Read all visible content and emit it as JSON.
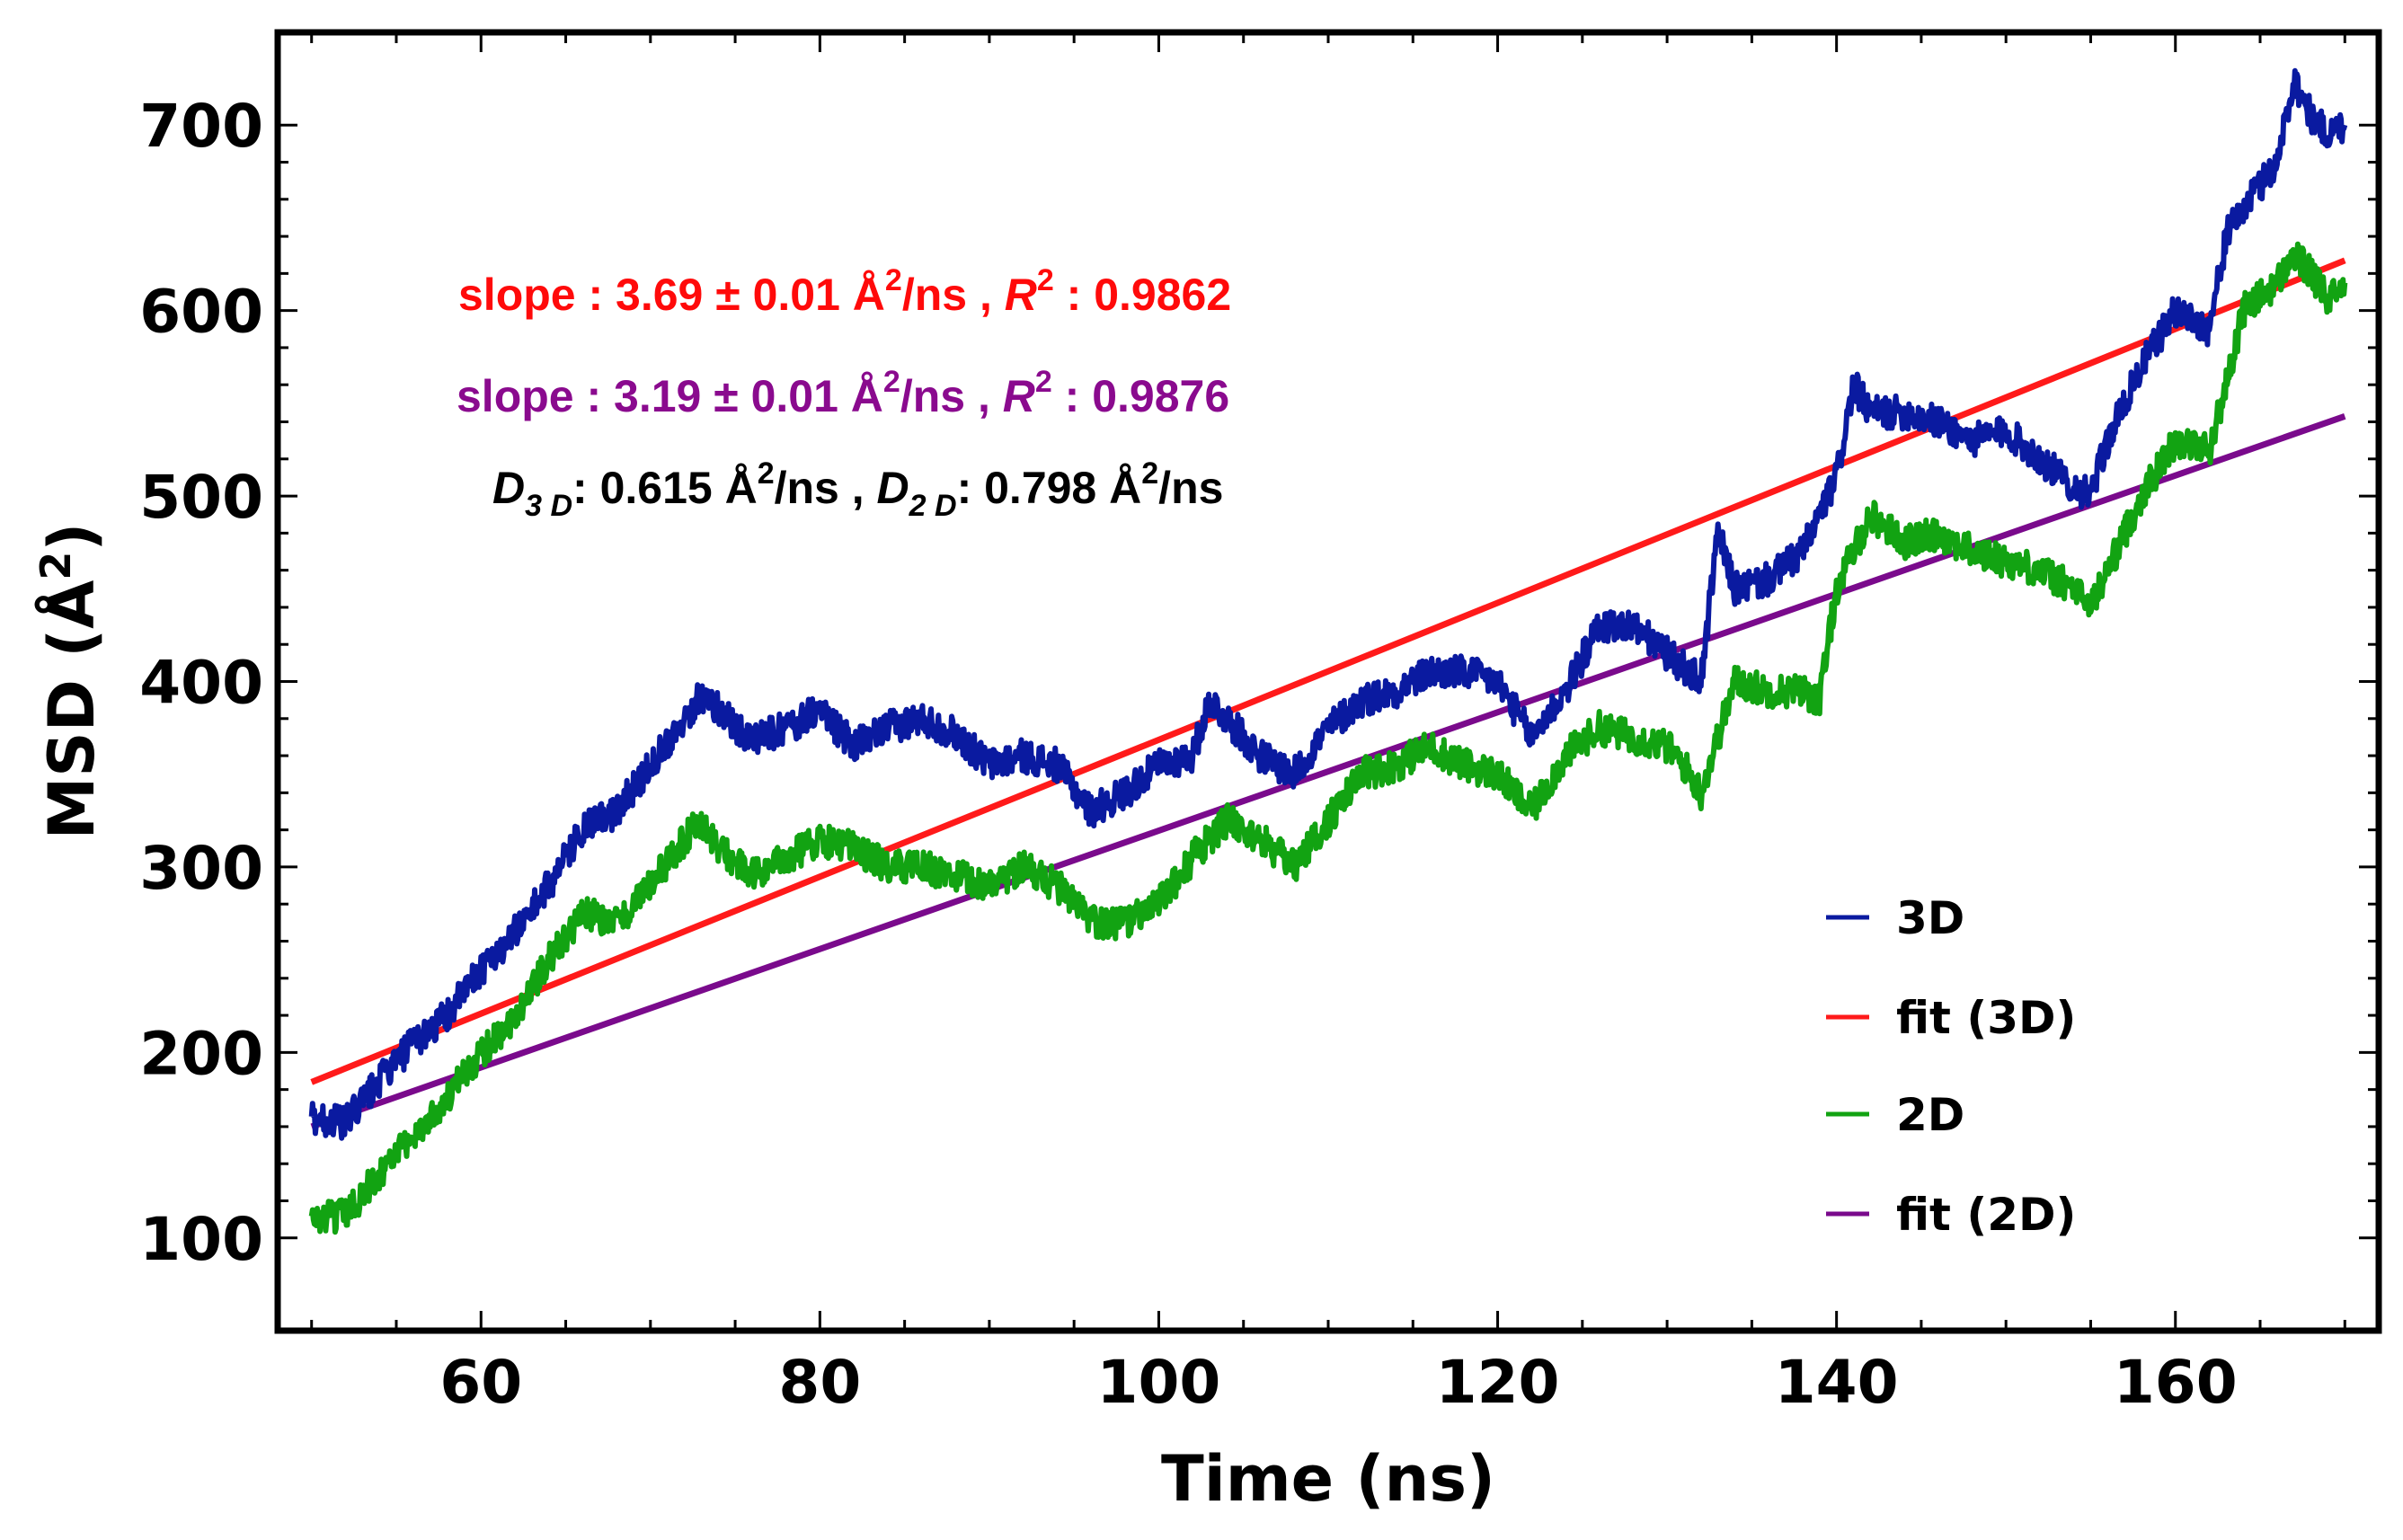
{
  "chart_data": {
    "type": "line",
    "xlabel": "Time (ns)",
    "ylabel_main": "MSD (Å",
    "ylabel_sup": "2",
    "ylabel_close": ")",
    "xlim": [
      48,
      172
    ],
    "ylim": [
      50,
      750
    ],
    "xticks": [
      60,
      80,
      100,
      120,
      140,
      160
    ],
    "yticks": [
      100,
      200,
      300,
      400,
      500,
      600,
      700
    ],
    "series": [
      {
        "name": "3D",
        "color": "#0a1aa0",
        "x": [
          50,
          52,
          54,
          56,
          58,
          60,
          62,
          64,
          66,
          68,
          70,
          72,
          73,
          74,
          76,
          78,
          80,
          82,
          84,
          86,
          88,
          90,
          92,
          94,
          96,
          98,
          100,
          102,
          103,
          104,
          106,
          108,
          110,
          112,
          114,
          116,
          118,
          120,
          122,
          124,
          126,
          128,
          130,
          132,
          133,
          134,
          136,
          138,
          140,
          141,
          142,
          144,
          146,
          148,
          150,
          152,
          154,
          155,
          156,
          158,
          160,
          162,
          163,
          164,
          166,
          167,
          168,
          169,
          170
        ],
        "values": [
          165,
          162,
          185,
          205,
          220,
          245,
          265,
          290,
          320,
          330,
          355,
          380,
          392,
          385,
          368,
          375,
          385,
          365,
          375,
          380,
          372,
          355,
          360,
          355,
          330,
          340,
          355,
          360,
          390,
          380,
          360,
          350,
          375,
          390,
          395,
          405,
          405,
          400,
          370,
          395,
          430,
          430,
          415,
          400,
          480,
          450,
          455,
          470,
          510,
          560,
          545,
          545,
          540,
          530,
          535,
          520,
          505,
          500,
          530,
          570,
          600,
          590,
          640,
          655,
          680,
          725,
          705,
          695,
          700
        ]
      },
      {
        "name": "2D",
        "color": "#12a312",
        "x": [
          50,
          52,
          54,
          56,
          58,
          60,
          62,
          64,
          66,
          68,
          70,
          72,
          73,
          74,
          76,
          78,
          80,
          82,
          84,
          86,
          88,
          90,
          92,
          94,
          96,
          98,
          100,
          102,
          104,
          106,
          108,
          110,
          112,
          114,
          116,
          118,
          120,
          122,
          124,
          126,
          128,
          130,
          131,
          132,
          134,
          136,
          138,
          139,
          140,
          142,
          144,
          146,
          148,
          150,
          152,
          154,
          155,
          156,
          158,
          160,
          162,
          163,
          164,
          166,
          167,
          168,
          169,
          170
        ],
        "values": [
          110,
          112,
          135,
          155,
          175,
          200,
          220,
          250,
          275,
          270,
          290,
          315,
          325,
          310,
          295,
          305,
          315,
          310,
          300,
          300,
          295,
          290,
          300,
          290,
          270,
          270,
          280,
          305,
          325,
          315,
          300,
          325,
          350,
          355,
          365,
          355,
          350,
          330,
          360,
          375,
          370,
          365,
          355,
          340,
          400,
          395,
          395,
          390,
          450,
          490,
          475,
          480,
          470,
          465,
          460,
          450,
          440,
          460,
          500,
          530,
          525,
          560,
          600,
          615,
          630,
          620,
          605,
          615
        ]
      },
      {
        "name": "fit (3D)",
        "color": "#ff1a1a",
        "x": [
          50,
          170
        ],
        "values": [
          184,
          627
        ]
      },
      {
        "name": "fit (2D)",
        "color": "#7a0a8c",
        "x": [
          50,
          170
        ],
        "values": [
          160,
          543
        ]
      }
    ],
    "legend": {
      "position": "bottom-right",
      "entries": [
        "3D",
        "fit (3D)",
        "2D",
        "fit (2D)"
      ]
    },
    "annotations": {
      "line1": {
        "color": "#ff0a0a",
        "slope_label": "slope : 3.69 ± 0.01 Å",
        "sup": "2",
        "unit": "/ns , ",
        "r_label": "R",
        "r_sup": "2",
        "r_value": " : 0.9862"
      },
      "line2": {
        "color": "#8a0a8e",
        "slope_label": "slope : 3.19 ± 0.01 Å",
        "sup": "2",
        "unit": "/ns , ",
        "r_label": "R",
        "r_sup": "2",
        "r_value": "  : 0.9876"
      },
      "line3": {
        "color": "#000000",
        "d3_label": "D",
        "d3_sub": "3 D",
        "d3_value": ": 0.615 Å",
        "d3_sup": "2",
        "d3_unit": "/ns , ",
        "d2_label": "D",
        "d2_sub": "2 D",
        "d2_value": ": 0.798 Å",
        "d2_sup": "2",
        "d2_unit": "/ns"
      }
    }
  }
}
